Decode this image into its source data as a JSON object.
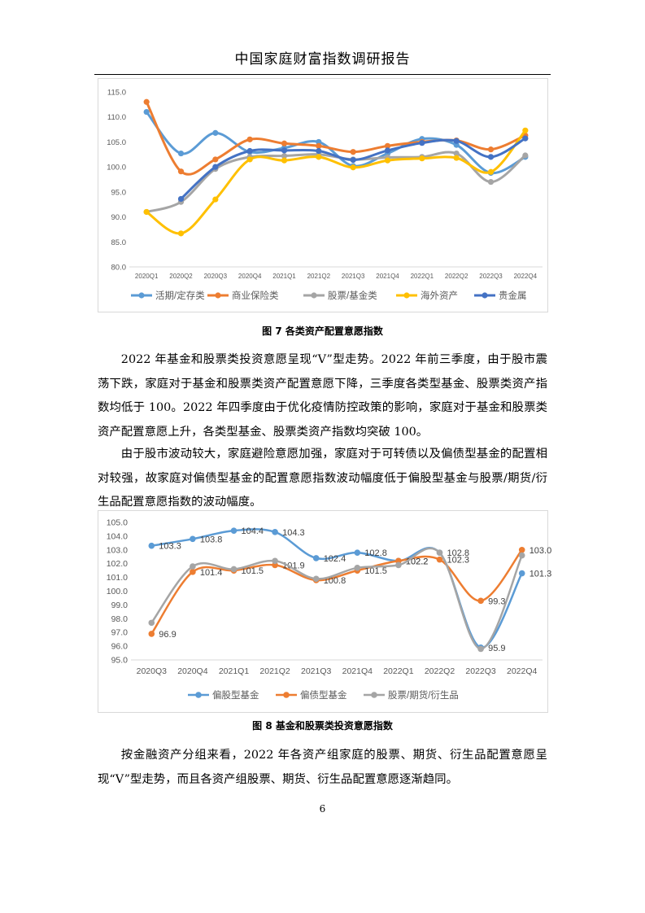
{
  "header": {
    "title": "中国家庭财富指数调研报告"
  },
  "figure7": {
    "caption": "图 7 各类资产配置意愿指数",
    "chart_data": {
      "type": "line",
      "title": "",
      "categories": [
        "2020Q1",
        "2020Q2",
        "2020Q3",
        "2020Q4",
        "2021Q1",
        "2021Q2",
        "2021Q3",
        "2021Q4",
        "2022Q1",
        "2022Q2",
        "2022Q3",
        "2022Q4"
      ],
      "ylim": [
        80,
        115
      ],
      "yticks": [
        "80.0",
        "85.0",
        "90.0",
        "95.0",
        "100.0",
        "105.0",
        "110.0",
        "115.0"
      ],
      "legend_position": "bottom",
      "grid": false,
      "series": [
        {
          "name": "活期/定存类",
          "color": "#5b9bd5",
          "values": [
            111.0,
            102.7,
            106.8,
            103.0,
            103.8,
            105.0,
            100.2,
            102.7,
            105.6,
            104.4,
            98.8,
            102.0
          ]
        },
        {
          "name": "商业保险类",
          "color": "#ed7d31",
          "values": [
            113.0,
            99.1,
            101.5,
            105.5,
            104.7,
            104.2,
            103.0,
            104.2,
            105.0,
            105.3,
            103.5,
            106.3
          ]
        },
        {
          "name": "股票/基金类",
          "color": "#a5a5a5",
          "values": [
            91.0,
            93.0,
            99.6,
            102.0,
            102.2,
            102.5,
            101.5,
            101.9,
            102.0,
            102.7,
            97.0,
            102.3
          ]
        },
        {
          "name": "海外资产",
          "color": "#ffc000",
          "values": [
            91.0,
            86.7,
            93.5,
            101.5,
            101.3,
            102.0,
            99.9,
            101.3,
            101.7,
            101.8,
            99.0,
            107.3
          ]
        },
        {
          "name": "贵金属",
          "color": "#4472c4",
          "values": [
            null,
            93.6,
            100.0,
            103.2,
            103.3,
            103.2,
            101.4,
            103.3,
            104.8,
            105.2,
            102.0,
            105.7
          ]
        }
      ]
    }
  },
  "paragraphs": {
    "p1": "2022 年基金和股票类投资意愿呈现“V”型走势。2022 年前三季度，由于股市震荡下跌，家庭对于基金和股票类资产配置意愿下降，三季度各类型基金、股票类资产指数均低于 100。2022 年四季度由于优化疫情防控政策的影响，家庭对于基金和股票类资产配置意愿上升，各类型基金、股票类资产指数均突破 100。",
    "p2": "由于股市波动较大，家庭避险意愿加强，家庭对于可转债以及偏债型基金的配置相对较强，故家庭对偏债型基金的配置意愿指数波动幅度低于偏股型基金与股票/期货/衍生品配置意愿指数的波动幅度。",
    "p3": "按金融资产分组来看，2022 年各资产组家庭的股票、期货、衍生品配置意愿呈现“V”型走势，而且各资产组股票、期货、衍生品配置意愿逐渐趋同。"
  },
  "figure8": {
    "caption": "图 8 基金和股票类投资意愿指数",
    "chart_data": {
      "type": "line",
      "title": "",
      "categories": [
        "2020Q3",
        "2020Q4",
        "2021Q1",
        "2021Q2",
        "2021Q3",
        "2021Q4",
        "2022Q1",
        "2022Q2",
        "2022Q3",
        "2022Q4"
      ],
      "ylim": [
        95,
        105
      ],
      "yticks": [
        "95.0",
        "96.0",
        "97.0",
        "98.0",
        "99.0",
        "100.0",
        "101.0",
        "102.0",
        "103.0",
        "104.0",
        "105.0"
      ],
      "legend_position": "bottom",
      "grid": false,
      "series": [
        {
          "name": "偏股型基金",
          "color": "#5b9bd5",
          "values": [
            103.3,
            103.8,
            104.4,
            104.3,
            102.4,
            102.8,
            102.2,
            102.8,
            95.9,
            101.3
          ],
          "labels": [
            "103.3",
            "103.8",
            "104.4",
            "104.3",
            "102.4",
            "102.8",
            "102.2",
            "102.8",
            "95.9",
            "101.3"
          ],
          "label_show": [
            true,
            true,
            true,
            true,
            true,
            true,
            true,
            true,
            true,
            true
          ]
        },
        {
          "name": "偏债型基金",
          "color": "#ed7d31",
          "values": [
            96.9,
            101.4,
            101.5,
            101.9,
            100.8,
            101.5,
            102.2,
            102.3,
            99.3,
            103.0
          ],
          "labels": [
            "96.9",
            "101.4",
            "101.5",
            "101.9",
            "100.8",
            "101.5",
            "102.2",
            "102.3",
            "99.3",
            "103.0"
          ],
          "label_show": [
            true,
            true,
            true,
            true,
            true,
            true,
            true,
            true,
            true,
            true
          ]
        },
        {
          "name": "股票/期货/衍生品",
          "color": "#a5a5a5",
          "values": [
            97.7,
            101.8,
            101.6,
            102.2,
            100.9,
            101.7,
            101.9,
            102.8,
            95.8,
            102.6
          ],
          "labels": [],
          "label_show": []
        }
      ]
    }
  },
  "footer": {
    "page_number": "6"
  }
}
